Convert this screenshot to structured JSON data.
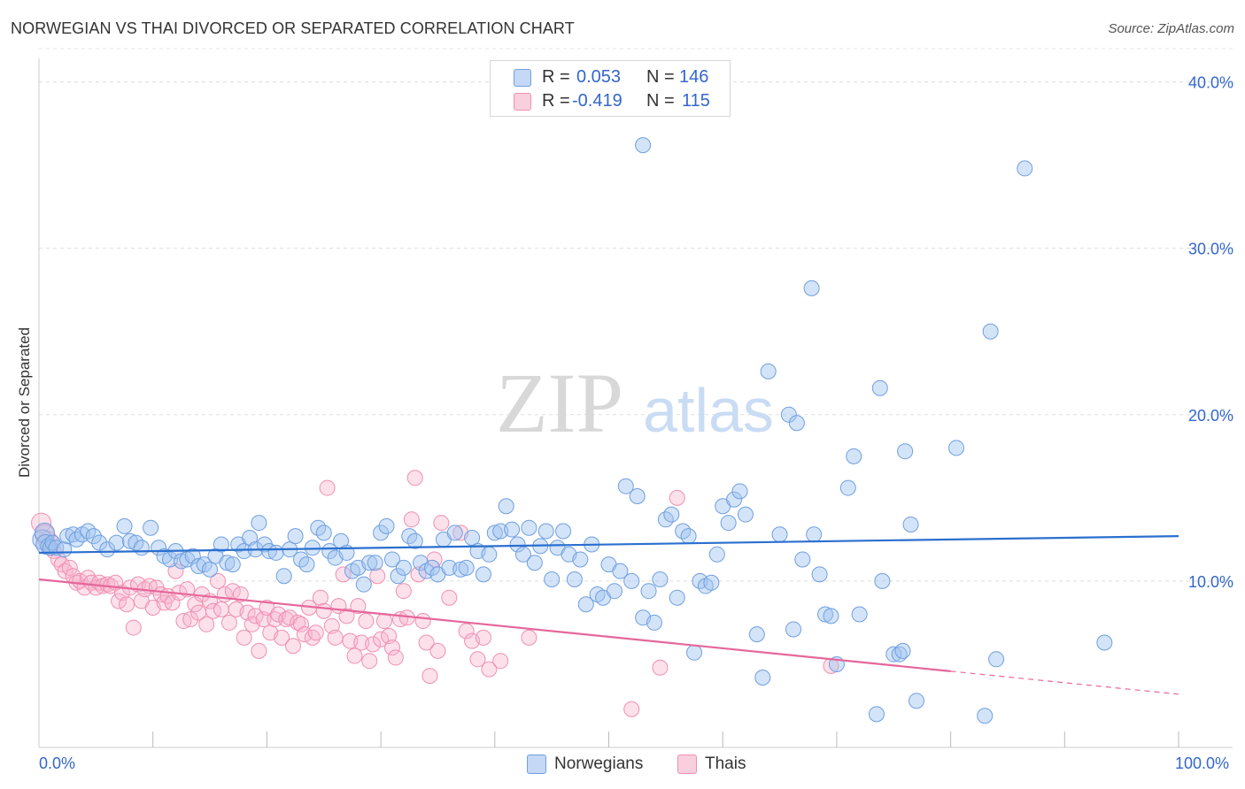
{
  "title": "NORWEGIAN VS THAI DIVORCED OR SEPARATED CORRELATION CHART",
  "source": "Source: ZipAtlas.com",
  "watermark": {
    "zip": "ZIP",
    "atlas": "atlas"
  },
  "legend": {
    "rows": [
      {
        "r_label": "R =",
        "r_value": "0.053",
        "n_label": "N =",
        "n_value": "146"
      },
      {
        "r_label": "R =",
        "r_value": "-0.419",
        "n_label": "N =",
        "n_value": "115"
      }
    ]
  },
  "bottom_legend": {
    "norwegians": "Norwegians",
    "thais": "Thais"
  },
  "x_tick_left": "0.0%",
  "x_tick_right": "100.0%",
  "chart_data": {
    "type": "scatter",
    "title": "NORWEGIAN VS THAI DIVORCED OR SEPARATED CORRELATION CHART",
    "xlabel": "",
    "ylabel": "Divorced or Separated",
    "xlim": [
      0,
      100
    ],
    "ylim": [
      0,
      42
    ],
    "y_ticks": [
      10,
      20,
      30,
      40
    ],
    "y_tick_labels": [
      "10.0%",
      "20.0%",
      "30.0%",
      "40.0%"
    ],
    "x_tick_labels": [
      "0.0%",
      "100.0%"
    ],
    "grid": true,
    "legend_position": "top-center",
    "colors": {
      "norwegians": "#6f9fe0",
      "thais": "#f08fb0",
      "norwegians_line": "#2a6fcf",
      "thais_line": "#e5679b"
    },
    "series": [
      {
        "name": "Norwegians",
        "stats": {
          "R": 0.053,
          "N": 146
        },
        "trend": {
          "x": [
            0,
            100
          ],
          "y": [
            11.7,
            12.7
          ],
          "solid_to": 100
        },
        "points": [
          [
            0.3,
            12.5
          ],
          [
            0.5,
            12.9
          ],
          [
            0.6,
            12.2
          ],
          [
            0.8,
            12.1
          ],
          [
            1.0,
            12.0
          ],
          [
            1.2,
            12.3
          ],
          [
            1.5,
            12.0
          ],
          [
            2.2,
            11.9
          ],
          [
            2.5,
            12.7
          ],
          [
            3.0,
            12.8
          ],
          [
            3.3,
            12.5
          ],
          [
            3.8,
            12.8
          ],
          [
            4.3,
            13.0
          ],
          [
            4.8,
            12.7
          ],
          [
            5.3,
            12.3
          ],
          [
            6.0,
            11.9
          ],
          [
            6.8,
            12.3
          ],
          [
            7.5,
            13.3
          ],
          [
            8.0,
            12.4
          ],
          [
            8.5,
            12.3
          ],
          [
            9.0,
            12.0
          ],
          [
            9.8,
            13.2
          ],
          [
            10.5,
            12.0
          ],
          [
            11.0,
            11.5
          ],
          [
            11.5,
            11.3
          ],
          [
            12.0,
            11.8
          ],
          [
            12.5,
            11.2
          ],
          [
            13.0,
            11.3
          ],
          [
            13.5,
            11.5
          ],
          [
            14.0,
            10.9
          ],
          [
            14.5,
            11.0
          ],
          [
            15.0,
            10.7
          ],
          [
            15.5,
            11.5
          ],
          [
            16.0,
            12.2
          ],
          [
            16.5,
            11.1
          ],
          [
            17.0,
            11.0
          ],
          [
            17.5,
            12.2
          ],
          [
            18.0,
            11.8
          ],
          [
            18.5,
            12.6
          ],
          [
            19.0,
            11.9
          ],
          [
            19.3,
            13.5
          ],
          [
            19.8,
            12.2
          ],
          [
            20.2,
            11.8
          ],
          [
            20.8,
            11.7
          ],
          [
            21.5,
            10.3
          ],
          [
            22.0,
            11.9
          ],
          [
            22.5,
            12.7
          ],
          [
            23.0,
            11.3
          ],
          [
            23.5,
            11.0
          ],
          [
            24.0,
            12.0
          ],
          [
            24.5,
            13.2
          ],
          [
            25.0,
            12.9
          ],
          [
            25.5,
            11.8
          ],
          [
            26.0,
            11.4
          ],
          [
            26.5,
            12.4
          ],
          [
            27.0,
            11.7
          ],
          [
            27.5,
            10.6
          ],
          [
            28.0,
            10.8
          ],
          [
            28.5,
            9.8
          ],
          [
            29.0,
            11.1
          ],
          [
            29.5,
            11.1
          ],
          [
            30.0,
            12.9
          ],
          [
            30.5,
            13.3
          ],
          [
            31.0,
            11.3
          ],
          [
            31.5,
            10.3
          ],
          [
            32.0,
            10.8
          ],
          [
            32.5,
            12.7
          ],
          [
            33.0,
            12.4
          ],
          [
            33.5,
            11.1
          ],
          [
            34.0,
            10.6
          ],
          [
            34.5,
            10.8
          ],
          [
            35.0,
            10.4
          ],
          [
            35.5,
            12.5
          ],
          [
            36.0,
            10.8
          ],
          [
            36.5,
            12.9
          ],
          [
            37.0,
            10.7
          ],
          [
            37.5,
            10.8
          ],
          [
            38.0,
            12.6
          ],
          [
            38.5,
            11.8
          ],
          [
            39.0,
            10.4
          ],
          [
            39.5,
            11.6
          ],
          [
            40.0,
            12.9
          ],
          [
            40.5,
            13.0
          ],
          [
            41.0,
            14.5
          ],
          [
            41.5,
            13.1
          ],
          [
            42.0,
            12.2
          ],
          [
            42.5,
            11.6
          ],
          [
            43.0,
            13.2
          ],
          [
            43.5,
            11.1
          ],
          [
            44.0,
            12.1
          ],
          [
            44.5,
            13.0
          ],
          [
            45.0,
            10.1
          ],
          [
            45.5,
            12.0
          ],
          [
            46.0,
            13.0
          ],
          [
            46.5,
            11.6
          ],
          [
            47.0,
            10.1
          ],
          [
            47.5,
            11.3
          ],
          [
            48.0,
            8.6
          ],
          [
            48.5,
            12.2
          ],
          [
            49.0,
            9.2
          ],
          [
            49.5,
            9.0
          ],
          [
            50.0,
            11.0
          ],
          [
            50.5,
            9.4
          ],
          [
            51.0,
            10.6
          ],
          [
            51.5,
            15.7
          ],
          [
            52.0,
            10.0
          ],
          [
            52.5,
            15.1
          ],
          [
            53.0,
            7.8
          ],
          [
            53.5,
            9.4
          ],
          [
            54.0,
            7.5
          ],
          [
            54.5,
            10.1
          ],
          [
            55.0,
            13.7
          ],
          [
            55.5,
            14.0
          ],
          [
            56.0,
            9.0
          ],
          [
            56.5,
            13.0
          ],
          [
            57.0,
            12.7
          ],
          [
            57.5,
            5.7
          ],
          [
            58.0,
            10.0
          ],
          [
            58.5,
            9.7
          ],
          [
            59.0,
            9.9
          ],
          [
            59.5,
            11.6
          ],
          [
            60.0,
            14.5
          ],
          [
            60.5,
            13.5
          ],
          [
            61.0,
            14.9
          ],
          [
            61.5,
            15.4
          ],
          [
            62.0,
            14.0
          ],
          [
            63.0,
            6.8
          ],
          [
            63.5,
            4.2
          ],
          [
            64.0,
            22.6
          ],
          [
            65.0,
            12.8
          ],
          [
            65.8,
            20.0
          ],
          [
            66.2,
            7.1
          ],
          [
            66.5,
            19.5
          ],
          [
            67.0,
            11.3
          ],
          [
            67.8,
            27.6
          ],
          [
            68.0,
            12.8
          ],
          [
            68.5,
            10.4
          ],
          [
            69.0,
            8.0
          ],
          [
            69.5,
            7.9
          ],
          [
            70.0,
            5.0
          ],
          [
            71.0,
            15.6
          ],
          [
            71.5,
            17.5
          ],
          [
            72.0,
            8.0
          ],
          [
            73.5,
            2.0
          ],
          [
            73.8,
            21.6
          ],
          [
            74.0,
            10.0
          ],
          [
            75.0,
            5.6
          ],
          [
            75.5,
            5.6
          ],
          [
            75.8,
            5.8
          ],
          [
            76.0,
            17.8
          ],
          [
            76.5,
            13.4
          ],
          [
            77.0,
            2.8
          ],
          [
            80.5,
            18.0
          ],
          [
            83.0,
            1.9
          ],
          [
            84.0,
            5.3
          ],
          [
            83.5,
            25.0
          ],
          [
            86.5,
            34.8
          ],
          [
            93.5,
            6.3
          ],
          [
            53.0,
            36.2
          ]
        ]
      },
      {
        "name": "Thais",
        "stats": {
          "R": -0.419,
          "N": 115
        },
        "trend": {
          "x": [
            0,
            100
          ],
          "y": [
            10.1,
            3.2
          ],
          "solid_to": 80
        },
        "points": [
          [
            0.2,
            13.5
          ],
          [
            0.5,
            12.8
          ],
          [
            0.8,
            12.4
          ],
          [
            1.0,
            12.0
          ],
          [
            1.3,
            11.8
          ],
          [
            1.7,
            11.3
          ],
          [
            2.0,
            11.0
          ],
          [
            2.3,
            10.6
          ],
          [
            2.7,
            10.8
          ],
          [
            3.0,
            10.3
          ],
          [
            3.3,
            9.9
          ],
          [
            3.6,
            10.0
          ],
          [
            4.0,
            9.6
          ],
          [
            4.3,
            10.2
          ],
          [
            4.6,
            9.9
          ],
          [
            5.0,
            9.6
          ],
          [
            5.3,
            9.9
          ],
          [
            5.6,
            9.7
          ],
          [
            6.0,
            9.8
          ],
          [
            6.3,
            9.7
          ],
          [
            6.7,
            9.9
          ],
          [
            7.0,
            8.8
          ],
          [
            7.3,
            9.3
          ],
          [
            7.7,
            8.6
          ],
          [
            8.0,
            9.6
          ],
          [
            8.3,
            7.2
          ],
          [
            8.7,
            9.8
          ],
          [
            9.0,
            8.8
          ],
          [
            9.3,
            9.5
          ],
          [
            9.7,
            9.7
          ],
          [
            10.0,
            8.4
          ],
          [
            10.3,
            9.6
          ],
          [
            10.7,
            9.2
          ],
          [
            11.0,
            8.7
          ],
          [
            11.3,
            9.1
          ],
          [
            11.7,
            8.7
          ],
          [
            12.0,
            10.6
          ],
          [
            12.3,
            9.3
          ],
          [
            12.7,
            7.6
          ],
          [
            13.0,
            9.5
          ],
          [
            13.3,
            7.7
          ],
          [
            13.7,
            8.6
          ],
          [
            14.0,
            8.1
          ],
          [
            14.3,
            9.2
          ],
          [
            14.7,
            7.4
          ],
          [
            15.0,
            8.8
          ],
          [
            15.3,
            8.2
          ],
          [
            15.7,
            10.0
          ],
          [
            16.0,
            8.3
          ],
          [
            16.3,
            9.2
          ],
          [
            16.7,
            7.5
          ],
          [
            17.0,
            9.4
          ],
          [
            17.3,
            8.3
          ],
          [
            17.7,
            9.2
          ],
          [
            18.0,
            6.6
          ],
          [
            18.3,
            8.1
          ],
          [
            18.7,
            7.4
          ],
          [
            19.0,
            7.9
          ],
          [
            19.3,
            5.8
          ],
          [
            19.7,
            7.7
          ],
          [
            20.0,
            8.4
          ],
          [
            20.3,
            6.9
          ],
          [
            20.7,
            7.7
          ],
          [
            21.0,
            8.0
          ],
          [
            21.3,
            6.6
          ],
          [
            21.7,
            7.7
          ],
          [
            22.0,
            7.8
          ],
          [
            22.3,
            6.1
          ],
          [
            22.7,
            7.5
          ],
          [
            23.0,
            7.4
          ],
          [
            23.3,
            6.8
          ],
          [
            23.7,
            8.4
          ],
          [
            24.0,
            6.6
          ],
          [
            24.3,
            6.9
          ],
          [
            24.7,
            9.0
          ],
          [
            25.0,
            8.2
          ],
          [
            25.3,
            15.6
          ],
          [
            25.7,
            7.3
          ],
          [
            26.0,
            6.6
          ],
          [
            26.3,
            8.5
          ],
          [
            26.7,
            10.4
          ],
          [
            27.0,
            7.9
          ],
          [
            27.3,
            6.4
          ],
          [
            27.7,
            5.5
          ],
          [
            28.0,
            8.5
          ],
          [
            28.3,
            6.3
          ],
          [
            28.7,
            7.6
          ],
          [
            29.0,
            5.2
          ],
          [
            29.3,
            6.2
          ],
          [
            29.7,
            10.3
          ],
          [
            30.0,
            6.5
          ],
          [
            30.3,
            7.6
          ],
          [
            30.7,
            6.7
          ],
          [
            31.0,
            6.0
          ],
          [
            31.3,
            5.4
          ],
          [
            31.7,
            7.7
          ],
          [
            32.0,
            9.4
          ],
          [
            32.3,
            7.8
          ],
          [
            32.7,
            13.7
          ],
          [
            33.0,
            16.2
          ],
          [
            33.3,
            10.4
          ],
          [
            33.7,
            7.6
          ],
          [
            34.0,
            6.3
          ],
          [
            34.3,
            4.3
          ],
          [
            34.7,
            11.3
          ],
          [
            35.0,
            5.8
          ],
          [
            35.3,
            13.5
          ],
          [
            36.0,
            9.0
          ],
          [
            37.0,
            12.9
          ],
          [
            37.5,
            7.0
          ],
          [
            38.0,
            6.4
          ],
          [
            38.5,
            5.3
          ],
          [
            39.0,
            6.6
          ],
          [
            39.5,
            4.7
          ],
          [
            40.5,
            5.2
          ],
          [
            43.0,
            6.6
          ],
          [
            52.0,
            2.3
          ],
          [
            54.5,
            4.8
          ],
          [
            56.0,
            15.0
          ],
          [
            69.5,
            4.9
          ]
        ]
      }
    ]
  }
}
